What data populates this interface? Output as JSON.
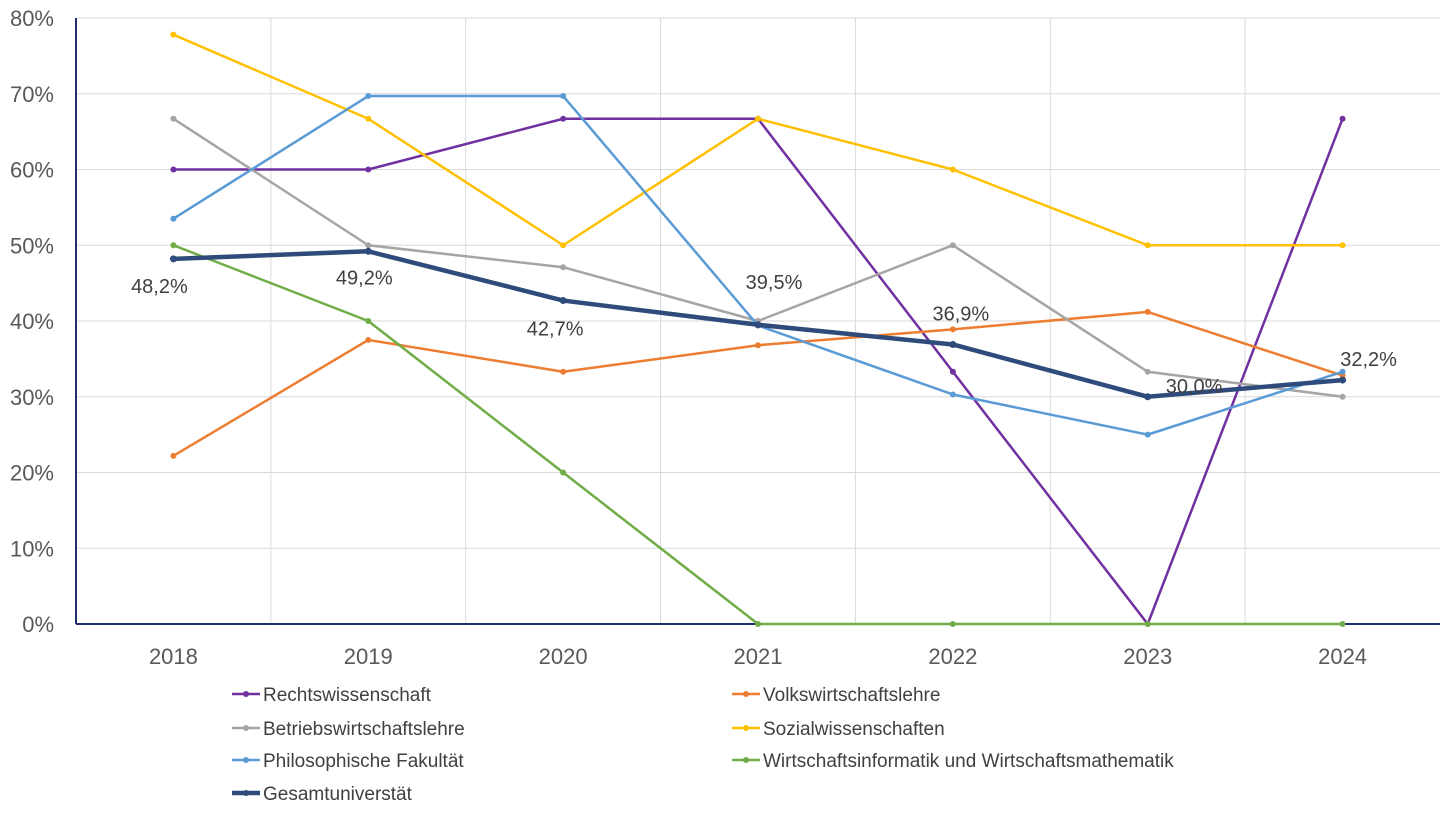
{
  "chart_data": {
    "type": "line",
    "categories": [
      "2018",
      "2019",
      "2020",
      "2021",
      "2022",
      "2023",
      "2024"
    ],
    "ylim": [
      0,
      80
    ],
    "y_ticks": [
      "0%",
      "10%",
      "20%",
      "30%",
      "40%",
      "50%",
      "60%",
      "70%",
      "80%"
    ],
    "y_unit": "%",
    "grid": true,
    "legend_position": "bottom",
    "series": [
      {
        "name": "Rechtswissenschaft",
        "color": "#7030a0",
        "values": [
          60,
          60,
          66.7,
          66.7,
          33.3,
          0,
          66.7
        ]
      },
      {
        "name": "Volkswirtschaftslehre",
        "color": "#ed7d31",
        "values": [
          22.2,
          37.5,
          33.3,
          36.8,
          38.9,
          41.2,
          32.8
        ]
      },
      {
        "name": "Betriebswirtschaftslehre",
        "color": "#a5a5a5",
        "values": [
          66.7,
          50,
          47.1,
          40,
          50,
          33.3,
          30
        ]
      },
      {
        "name": "Sozialwissenschaften",
        "color": "#ffc000",
        "values": [
          77.8,
          66.7,
          50,
          66.7,
          60,
          50,
          50
        ]
      },
      {
        "name": "Philosophische Fakultät",
        "color": "#5b9bd5",
        "values": [
          53.5,
          69.7,
          69.7,
          39.4,
          30.3,
          25,
          33.3
        ]
      },
      {
        "name": "Wirtschaftsinformatik und Wirtschaftsmathematik",
        "color": "#70ad47",
        "values": [
          50,
          40,
          20,
          0,
          0,
          0,
          0
        ]
      },
      {
        "name": "Gesamtuniverstät",
        "color": "#2f4b7c",
        "values": [
          48.2,
          49.2,
          42.7,
          39.5,
          36.9,
          30.0,
          32.2
        ],
        "highlight": true
      }
    ],
    "data_labels": [
      "48,2%",
      "49,2%",
      "42,7%",
      "39,5%",
      "36,9%",
      "30,0%",
      "32,2%"
    ]
  }
}
